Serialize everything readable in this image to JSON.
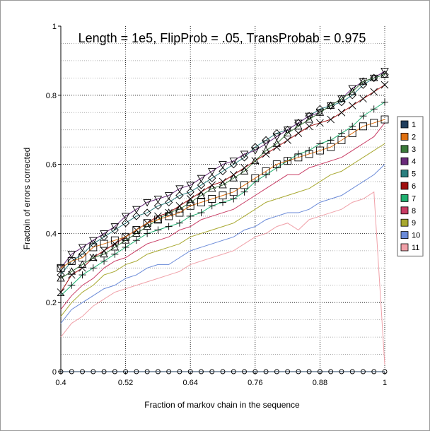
{
  "chart_data": {
    "type": "line",
    "title": "Length = 1e5, FlipProb = .05, TransProbab = 0.975",
    "xlabel": "Fraction of markov chain in the sequence",
    "ylabel": "Fractoin of errors corrected",
    "xlim": [
      0.4,
      1.0
    ],
    "ylim": [
      0,
      1.0
    ],
    "x_ticks": [
      "0.4",
      "0.52",
      "0.64",
      "0.76",
      "0.88",
      "1"
    ],
    "y_ticks": [
      "0",
      "0.2",
      "0.4",
      "0.6",
      "0.8",
      "1"
    ],
    "grid": true,
    "legend_position": "right",
    "x": [
      0.4,
      0.42,
      0.44,
      0.46,
      0.48,
      0.5,
      0.52,
      0.54,
      0.56,
      0.58,
      0.6,
      0.62,
      0.64,
      0.66,
      0.68,
      0.7,
      0.72,
      0.74,
      0.76,
      0.78,
      0.8,
      0.82,
      0.84,
      0.86,
      0.88,
      0.9,
      0.92,
      0.94,
      0.96,
      0.98,
      1.0
    ],
    "series": [
      {
        "name": "1",
        "color": "#1f3d5c",
        "marker": "circle",
        "values": [
          0,
          0,
          0,
          0,
          0,
          0,
          0,
          0,
          0,
          0,
          0,
          0,
          0,
          0,
          0,
          0,
          0,
          0,
          0,
          0,
          0,
          0,
          0,
          0,
          0,
          0,
          0,
          0,
          0,
          0,
          0
        ]
      },
      {
        "name": "2",
        "color": "#e07010",
        "marker": "square",
        "values": [
          0.3,
          0.32,
          0.33,
          0.36,
          0.37,
          0.38,
          0.39,
          0.41,
          0.43,
          0.44,
          0.45,
          0.46,
          0.48,
          0.49,
          0.5,
          0.51,
          0.52,
          0.54,
          0.56,
          0.58,
          0.6,
          0.61,
          0.62,
          0.63,
          0.64,
          0.65,
          0.67,
          0.69,
          0.71,
          0.72,
          0.73
        ]
      },
      {
        "name": "3",
        "color": "#3a7a3a",
        "marker": "triangle",
        "values": [
          0.27,
          0.29,
          0.31,
          0.33,
          0.34,
          0.36,
          0.38,
          0.4,
          0.42,
          0.44,
          0.46,
          0.47,
          0.49,
          0.51,
          0.53,
          0.54,
          0.56,
          0.58,
          0.61,
          0.64,
          0.66,
          0.69,
          0.71,
          0.73,
          0.75,
          0.77,
          0.79,
          0.81,
          0.84,
          0.85,
          0.86
        ]
      },
      {
        "name": "4",
        "color": "#6a2a7a",
        "marker": "triangle-down",
        "values": [
          0.3,
          0.34,
          0.36,
          0.38,
          0.4,
          0.42,
          0.45,
          0.47,
          0.49,
          0.5,
          0.51,
          0.53,
          0.54,
          0.56,
          0.58,
          0.6,
          0.61,
          0.63,
          0.64,
          0.66,
          0.68,
          0.7,
          0.72,
          0.74,
          0.75,
          0.77,
          0.79,
          0.82,
          0.84,
          0.85,
          0.87
        ]
      },
      {
        "name": "5",
        "color": "#2a7f7f",
        "marker": "diamond",
        "values": [
          0.28,
          0.32,
          0.34,
          0.37,
          0.39,
          0.41,
          0.43,
          0.45,
          0.46,
          0.48,
          0.49,
          0.51,
          0.52,
          0.54,
          0.56,
          0.58,
          0.6,
          0.62,
          0.65,
          0.67,
          0.69,
          0.7,
          0.72,
          0.74,
          0.76,
          0.77,
          0.78,
          0.8,
          0.83,
          0.85,
          0.86
        ]
      },
      {
        "name": "6",
        "color": "#a01010",
        "marker": "x",
        "values": [
          0.23,
          0.28,
          0.3,
          0.33,
          0.35,
          0.37,
          0.39,
          0.41,
          0.43,
          0.45,
          0.46,
          0.48,
          0.5,
          0.52,
          0.54,
          0.55,
          0.57,
          0.59,
          0.61,
          0.63,
          0.65,
          0.67,
          0.69,
          0.71,
          0.72,
          0.73,
          0.75,
          0.77,
          0.79,
          0.81,
          0.83
        ]
      },
      {
        "name": "7",
        "color": "#20b070",
        "marker": "plus",
        "values": [
          0.22,
          0.25,
          0.28,
          0.3,
          0.32,
          0.34,
          0.36,
          0.38,
          0.4,
          0.41,
          0.42,
          0.43,
          0.45,
          0.46,
          0.48,
          0.49,
          0.5,
          0.52,
          0.55,
          0.57,
          0.59,
          0.61,
          0.63,
          0.64,
          0.66,
          0.67,
          0.69,
          0.71,
          0.74,
          0.76,
          0.78
        ]
      },
      {
        "name": "8",
        "color": "#c83c64",
        "marker": "none",
        "values": [
          0.18,
          0.22,
          0.25,
          0.27,
          0.3,
          0.32,
          0.33,
          0.35,
          0.37,
          0.38,
          0.39,
          0.41,
          0.42,
          0.44,
          0.45,
          0.46,
          0.47,
          0.49,
          0.51,
          0.53,
          0.55,
          0.57,
          0.57,
          0.59,
          0.6,
          0.61,
          0.62,
          0.64,
          0.66,
          0.68,
          0.72
        ]
      },
      {
        "name": "9",
        "color": "#a8a830",
        "marker": "none",
        "values": [
          0.16,
          0.2,
          0.23,
          0.25,
          0.28,
          0.29,
          0.31,
          0.32,
          0.34,
          0.35,
          0.36,
          0.37,
          0.39,
          0.4,
          0.41,
          0.42,
          0.43,
          0.45,
          0.47,
          0.49,
          0.5,
          0.51,
          0.52,
          0.53,
          0.55,
          0.57,
          0.58,
          0.6,
          0.62,
          0.64,
          0.66
        ]
      },
      {
        "name": "10",
        "color": "#6a8ad8",
        "marker": "none",
        "values": [
          0.14,
          0.18,
          0.2,
          0.22,
          0.24,
          0.25,
          0.27,
          0.28,
          0.3,
          0.31,
          0.31,
          0.33,
          0.35,
          0.36,
          0.37,
          0.38,
          0.39,
          0.41,
          0.42,
          0.44,
          0.45,
          0.46,
          0.46,
          0.47,
          0.49,
          0.5,
          0.51,
          0.53,
          0.55,
          0.57,
          0.6
        ]
      },
      {
        "name": "11",
        "color": "#f0a0a8",
        "marker": "none",
        "values": [
          0.1,
          0.14,
          0.16,
          0.19,
          0.21,
          0.23,
          0.24,
          0.25,
          0.26,
          0.27,
          0.28,
          0.29,
          0.31,
          0.32,
          0.33,
          0.34,
          0.35,
          0.37,
          0.39,
          0.4,
          0.42,
          0.43,
          0.41,
          0.44,
          0.45,
          0.46,
          0.47,
          0.49,
          0.5,
          0.52,
          0.02
        ]
      }
    ]
  }
}
